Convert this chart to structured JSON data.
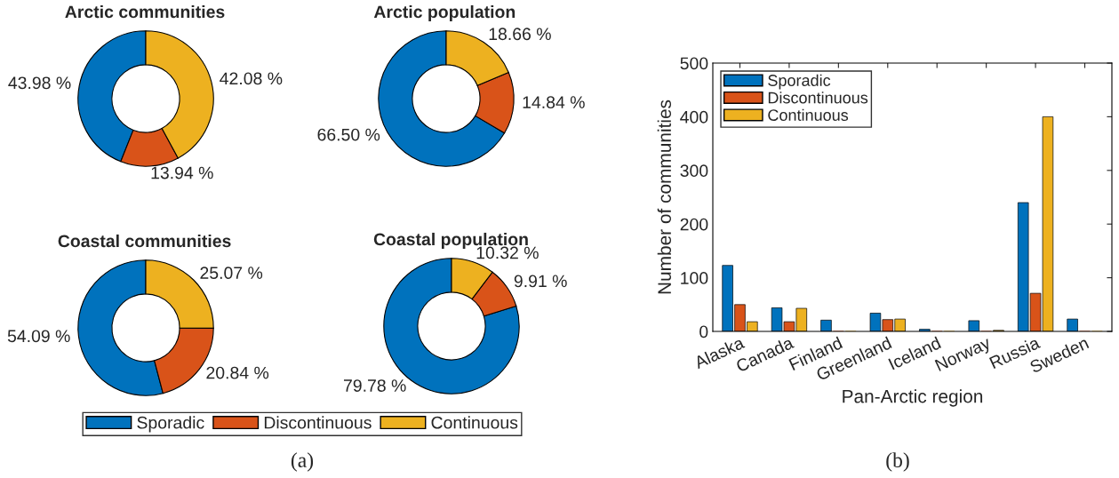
{
  "chart_data": [
    {
      "type": "donut",
      "title": "Arctic communities",
      "categories": [
        "Sporadic",
        "Discontinuous",
        "Continuous"
      ],
      "values": [
        43.98,
        13.94,
        42.08
      ],
      "value_labels": [
        "43.98 %",
        "13.94 %",
        "42.08 %"
      ],
      "colors": [
        "#0072bd",
        "#d95319",
        "#edb120"
      ],
      "legend": "bottom"
    },
    {
      "type": "donut",
      "title": "Arctic population",
      "categories": [
        null,
        null,
        null
      ],
      "values": [
        66.5,
        14.84,
        18.66
      ],
      "value_labels": [
        "66.50 %",
        "14.84 %",
        "18.66 %"
      ],
      "colors": [
        "#0072bd",
        "#d95319",
        "#edb120"
      ]
    },
    {
      "type": "donut",
      "title": "Coastal communities",
      "categories": [
        null,
        null,
        null
      ],
      "values": [
        54.09,
        20.84,
        25.07
      ],
      "value_labels": [
        "54.09 %",
        "20.84 %",
        "25.07 %"
      ],
      "colors": [
        "#0072bd",
        "#d95319",
        "#edb120"
      ]
    },
    {
      "type": "donut",
      "title": "Coastal population",
      "categories": [
        null,
        null,
        null
      ],
      "values": [
        79.78,
        9.91,
        10.32
      ],
      "value_labels": [
        "79.78 %",
        "9.91 %",
        "10.32 %"
      ],
      "colors": [
        "#0072bd",
        "#d95319",
        "#edb120"
      ],
      "annotations": [
        "(a)"
      ]
    },
    {
      "type": "bar",
      "xlabel": "Pan-Arctic region",
      "ylabel": "Number of communities",
      "categories": [
        "Alaska",
        "Canada",
        "Finland",
        "Greenland",
        "Iceland",
        "Norway",
        "Russia",
        "Sweden"
      ],
      "ylim": [
        0,
        500
      ],
      "yticks": [
        0,
        100,
        200,
        300,
        400,
        500
      ],
      "legend": "top left",
      "grid": false,
      "annotations": [
        "(b)"
      ],
      "series": [
        {
          "name": "Sporadic",
          "color": "#0072bd",
          "values": [
            123,
            44,
            21,
            34,
            4,
            20,
            240,
            23
          ]
        },
        {
          "name": "Discontinuous",
          "color": "#d95319",
          "values": [
            50,
            18,
            0,
            22,
            0,
            0,
            71,
            0
          ]
        },
        {
          "name": "Continuous",
          "color": "#edb120",
          "values": [
            18,
            43,
            0,
            23,
            0,
            2,
            400,
            0
          ]
        }
      ]
    }
  ]
}
